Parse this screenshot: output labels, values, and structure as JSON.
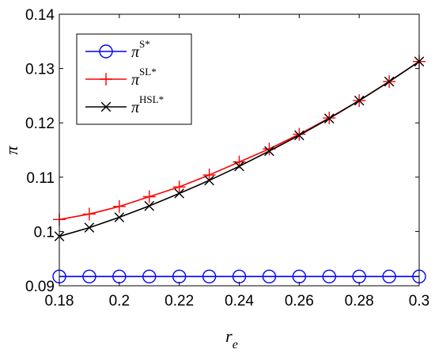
{
  "chart_data": {
    "type": "line",
    "title": "",
    "xlabel": "r",
    "xlabel_subscript": "e",
    "ylabel": "π",
    "xlim": [
      0.18,
      0.3
    ],
    "ylim": [
      0.09,
      0.14
    ],
    "x_ticks": [
      0.18,
      0.2,
      0.22,
      0.24,
      0.26,
      0.28,
      0.3
    ],
    "x_tick_labels": [
      "0.18",
      "0.2",
      "0.22",
      "0.24",
      "0.26",
      "0.28",
      "0.3"
    ],
    "y_ticks": [
      0.09,
      0.1,
      0.11,
      0.12,
      0.13,
      0.14
    ],
    "y_tick_labels": [
      "0.09",
      "0.1",
      "0.11",
      "0.12",
      "0.13",
      "0.14"
    ],
    "grid": false,
    "legend_position": "top-left",
    "x": [
      0.18,
      0.19,
      0.2,
      0.21,
      0.22,
      0.23,
      0.24,
      0.25,
      0.26,
      0.27,
      0.28,
      0.29,
      0.3
    ],
    "series": [
      {
        "name": "π",
        "superscript": "S*",
        "color": "#0000ff",
        "marker": "circle",
        "values": [
          0.0917,
          0.0917,
          0.0917,
          0.0917,
          0.0917,
          0.0917,
          0.0917,
          0.0917,
          0.0917,
          0.0917,
          0.0917,
          0.0917,
          0.0917
        ]
      },
      {
        "name": "π",
        "superscript": "SL*",
        "color": "#ff0000",
        "marker": "plus",
        "values": [
          0.1022,
          0.1032,
          0.1046,
          0.1064,
          0.1082,
          0.1104,
          0.1128,
          0.1152,
          0.1179,
          0.1209,
          0.1241,
          0.1276,
          0.1313
        ]
      },
      {
        "name": "π",
        "superscript": "HSL*",
        "color": "#000000",
        "marker": "x",
        "values": [
          0.0991,
          0.1007,
          0.1026,
          0.1047,
          0.107,
          0.1094,
          0.112,
          0.1148,
          0.1177,
          0.1208,
          0.1241,
          0.1276,
          0.1313
        ]
      }
    ]
  }
}
